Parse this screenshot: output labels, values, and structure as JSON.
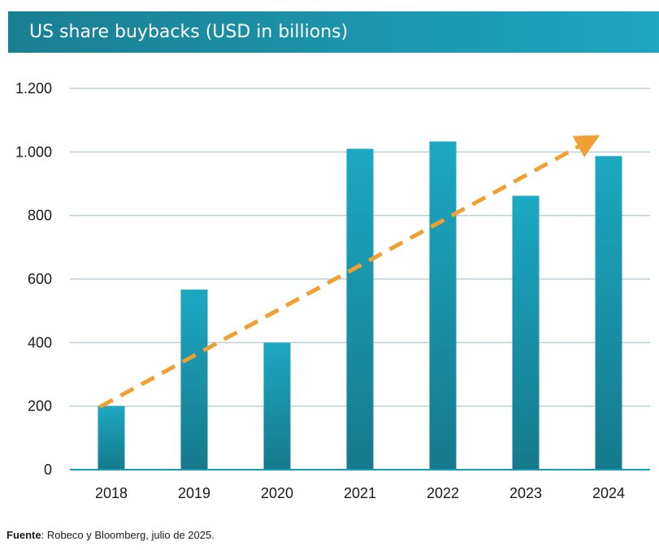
{
  "chart_data": {
    "type": "bar",
    "title": "US share buybacks (USD in billions)",
    "categories": [
      "2018",
      "2019",
      "2020",
      "2021",
      "2022",
      "2023",
      "2024"
    ],
    "values": [
      200,
      567,
      400,
      1010,
      1033,
      862,
      987
    ],
    "ylim": [
      0,
      1200
    ],
    "y_ticks": [
      0,
      200,
      400,
      600,
      800,
      1000,
      1200
    ],
    "y_tick_labels": [
      "0",
      "200",
      "400",
      "600",
      "800",
      "1.000",
      "1.200"
    ],
    "grid": true,
    "trend_arrow": {
      "from": [
        0,
        190
      ],
      "to": [
        6,
        1040
      ],
      "style": "dashed",
      "color": "#f0a030"
    },
    "colors": {
      "bar_top": "#1ca8c2",
      "bar_bottom": "#157a8c",
      "grid": "#b9cfd8",
      "axis": "#1a9bb3",
      "title_bg_left": "#1a7f93",
      "title_bg_right": "#1da7c1"
    }
  },
  "source": {
    "label": "Fuente",
    "text": ": Robeco y Bloomberg, julio de 2025."
  }
}
